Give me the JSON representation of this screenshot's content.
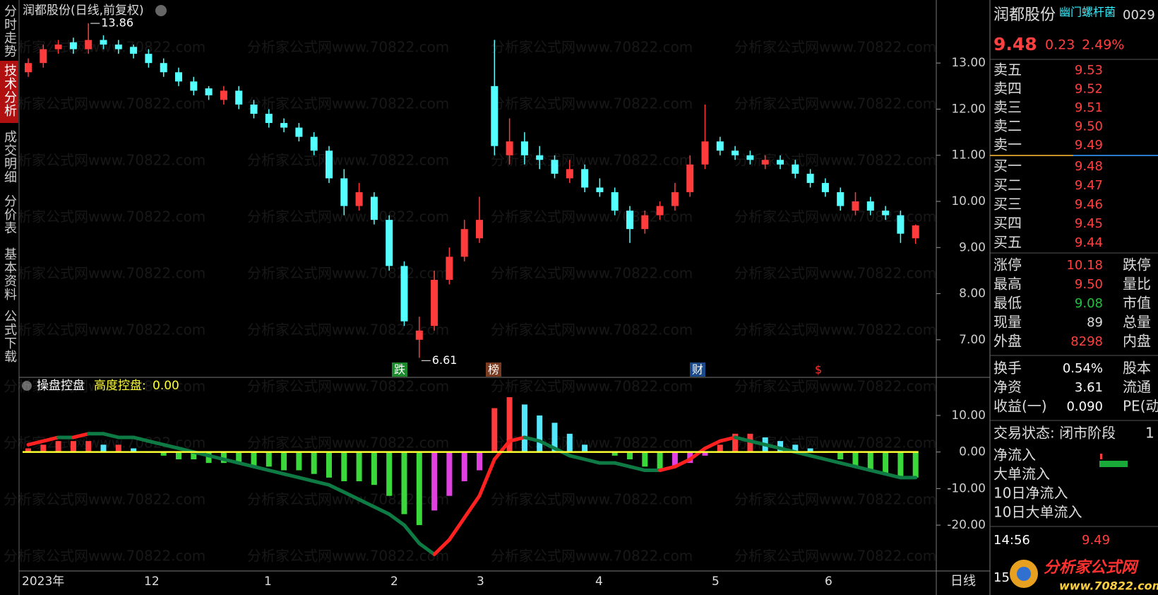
{
  "tabs": [
    "分时走势",
    "技术分析",
    "成交明细",
    "分价表",
    "基本资料",
    "公式下载"
  ],
  "watermark": "分析家公式网www.70822.com",
  "chart_data": [
    {
      "type": "candlestick",
      "title": "润都股份(日线,前复权)",
      "open": [
        12.8,
        13.0,
        13.3,
        13.45,
        13.3,
        13.5,
        13.4,
        13.35,
        13.2,
        13.0,
        12.8,
        12.6,
        12.45,
        12.2,
        12.4,
        12.1,
        11.9,
        11.7,
        11.6,
        11.4,
        11.1,
        10.5,
        9.9,
        10.1,
        9.6,
        8.6,
        7.0,
        7.3,
        8.3,
        8.8,
        9.2,
        12.5,
        11.0,
        11.3,
        11.0,
        10.9,
        10.5,
        10.7,
        10.3,
        10.2,
        9.8,
        9.4,
        9.7,
        9.9,
        10.2,
        10.8,
        11.3,
        11.1,
        11.0,
        10.8,
        10.9,
        10.8,
        10.6,
        10.4,
        10.2,
        9.8,
        10.0,
        9.8,
        9.7,
        9.2
      ],
      "high": [
        13.1,
        13.4,
        13.5,
        13.55,
        13.86,
        13.6,
        13.5,
        13.4,
        13.3,
        13.1,
        12.9,
        12.7,
        12.5,
        12.5,
        12.5,
        12.2,
        12.0,
        11.8,
        11.7,
        11.5,
        11.2,
        10.7,
        10.4,
        10.2,
        9.7,
        8.7,
        7.5,
        8.5,
        9.0,
        9.6,
        10.1,
        13.5,
        11.8,
        11.5,
        11.2,
        11.0,
        10.9,
        10.8,
        10.5,
        10.3,
        9.9,
        9.8,
        10.0,
        10.4,
        11.0,
        12.1,
        11.4,
        11.2,
        11.1,
        11.0,
        11.0,
        10.9,
        10.7,
        10.5,
        10.3,
        10.2,
        10.1,
        9.9,
        9.8,
        9.5
      ],
      "low": [
        12.7,
        12.9,
        13.2,
        13.2,
        13.2,
        13.3,
        13.2,
        13.1,
        12.9,
        12.7,
        12.5,
        12.3,
        12.2,
        12.1,
        12.0,
        11.8,
        11.6,
        11.5,
        11.3,
        11.0,
        10.4,
        9.7,
        9.8,
        9.5,
        8.5,
        7.3,
        6.61,
        7.2,
        8.2,
        8.7,
        9.1,
        11.0,
        10.8,
        10.8,
        10.7,
        10.5,
        10.4,
        10.2,
        10.1,
        9.7,
        9.1,
        9.3,
        9.6,
        9.8,
        10.1,
        10.7,
        11.0,
        10.9,
        10.8,
        10.7,
        10.7,
        10.5,
        10.3,
        10.1,
        9.8,
        9.7,
        9.7,
        9.6,
        9.1,
        9.08
      ],
      "close": [
        13.0,
        13.3,
        13.4,
        13.3,
        13.5,
        13.4,
        13.3,
        13.2,
        13.0,
        12.8,
        12.6,
        12.4,
        12.3,
        12.4,
        12.1,
        11.9,
        11.7,
        11.6,
        11.4,
        11.1,
        10.5,
        9.9,
        10.2,
        9.6,
        8.6,
        7.4,
        7.2,
        8.3,
        8.8,
        9.4,
        9.6,
        11.2,
        11.3,
        11.0,
        10.9,
        10.6,
        10.7,
        10.3,
        10.2,
        9.8,
        9.4,
        9.7,
        9.9,
        10.2,
        10.8,
        11.3,
        11.1,
        11.0,
        10.9,
        10.9,
        10.8,
        10.6,
        10.4,
        10.2,
        9.9,
        10.0,
        9.8,
        9.7,
        9.3,
        9.48
      ],
      "up_color": "#ff3b3b",
      "down_color": "#54ffff",
      "annotations": [
        13.86,
        6.61
      ],
      "events": [
        "跌",
        "榜",
        "财",
        "$"
      ],
      "ylim": [
        6.4,
        14.06
      ],
      "yticks": [
        {
          "value": 7,
          "label": "7.00"
        },
        {
          "value": 8,
          "label": "8.00"
        },
        {
          "value": 9,
          "label": "9.00"
        },
        {
          "value": 10,
          "label": "10.00"
        },
        {
          "value": 11,
          "label": "11.00"
        },
        {
          "value": 12,
          "label": "12.00"
        },
        {
          "value": 13,
          "label": "13.00"
        }
      ]
    },
    {
      "type": "histogram-line",
      "title": "操盘控盘",
      "histogram": [
        1,
        2,
        3,
        3,
        3,
        2,
        2,
        1,
        0,
        -1,
        -2,
        -2,
        -3,
        -3,
        -3,
        -4,
        -4,
        -5,
        -5,
        -6,
        -7,
        -8,
        -8,
        -9,
        -12,
        -17,
        -20,
        -16,
        -12,
        -8,
        -5,
        12,
        15,
        13,
        10,
        8,
        5,
        2,
        0,
        -1,
        -2,
        -4,
        -5,
        -4,
        -3,
        -1,
        2,
        5,
        5,
        4,
        3,
        2,
        1,
        0,
        -2,
        -4,
        -5,
        -6,
        -7,
        -7
      ],
      "line": [
        2,
        3,
        4,
        4,
        5,
        5,
        4,
        4,
        3,
        2,
        1,
        0,
        -1,
        -2,
        -3,
        -4,
        -5,
        -6,
        -7,
        -8,
        -9,
        -11,
        -13,
        -15,
        -17,
        -20,
        -25,
        -28,
        -24,
        -18,
        -12,
        -2,
        3,
        4,
        3,
        1,
        -1,
        -2,
        -3,
        -3,
        -4,
        -5,
        -5,
        -4,
        -2,
        1,
        3,
        4,
        3,
        2,
        1,
        0,
        -1,
        -2,
        -3,
        -4,
        -5,
        -6,
        -7,
        -7
      ],
      "level": {
        "name": "高度控盘:",
        "value": 0,
        "value_label": "0.00",
        "color": "#ffff33"
      },
      "ylim": [
        -31,
        18.3
      ],
      "yticks": [
        {
          "value": 10,
          "label": "10.00"
        },
        {
          "value": 0,
          "label": "0.00"
        },
        {
          "value": -10,
          "label": "-10.00"
        },
        {
          "value": -20,
          "label": "-20.00"
        }
      ]
    }
  ],
  "time_axis": {
    "labels": [
      "2023年",
      "12",
      "1",
      "2",
      "3",
      "4",
      "5",
      "6"
    ],
    "period": "日线"
  },
  "quote_panel": {
    "name": "润都股份",
    "concept": "幽门螺杆菌",
    "code": "0029",
    "price": "9.48",
    "change": "0.23",
    "change_pct": "2.49%",
    "order_book": [
      [
        "卖五",
        "9.53"
      ],
      [
        "卖四",
        "9.52"
      ],
      [
        "卖三",
        "9.51"
      ],
      [
        "卖二",
        "9.50"
      ],
      [
        "卖一",
        "9.49"
      ],
      [
        "买一",
        "9.48"
      ],
      [
        "买二",
        "9.47"
      ],
      [
        "买三",
        "9.46"
      ],
      [
        "买四",
        "9.45"
      ],
      [
        "买五",
        "9.44"
      ]
    ],
    "stats": [
      [
        "涨停",
        "10.18",
        "跌停"
      ],
      [
        "最高",
        "9.50",
        "量比"
      ],
      [
        "最低",
        "9.08",
        "市值"
      ],
      [
        "现量",
        "89",
        "总量"
      ],
      [
        "外盘",
        "8298",
        "内盘"
      ]
    ],
    "stats2": [
      [
        "换手",
        "0.54%",
        "股本"
      ],
      [
        "净资",
        "3.61",
        "流通"
      ],
      [
        "收益(一)",
        "0.090",
        "PE(动"
      ]
    ],
    "status": "交易状态: 闭市阶段",
    "status_extra": "1",
    "flows": [
      "净流入",
      "大单流入",
      "10日净流入",
      "10日大单流入"
    ],
    "ticks": [
      [
        "14:56",
        "9.49"
      ],
      [
        "15"
      ]
    ],
    "logo": {
      "name": "分析家公式网",
      "url": "www.70822.com"
    }
  }
}
